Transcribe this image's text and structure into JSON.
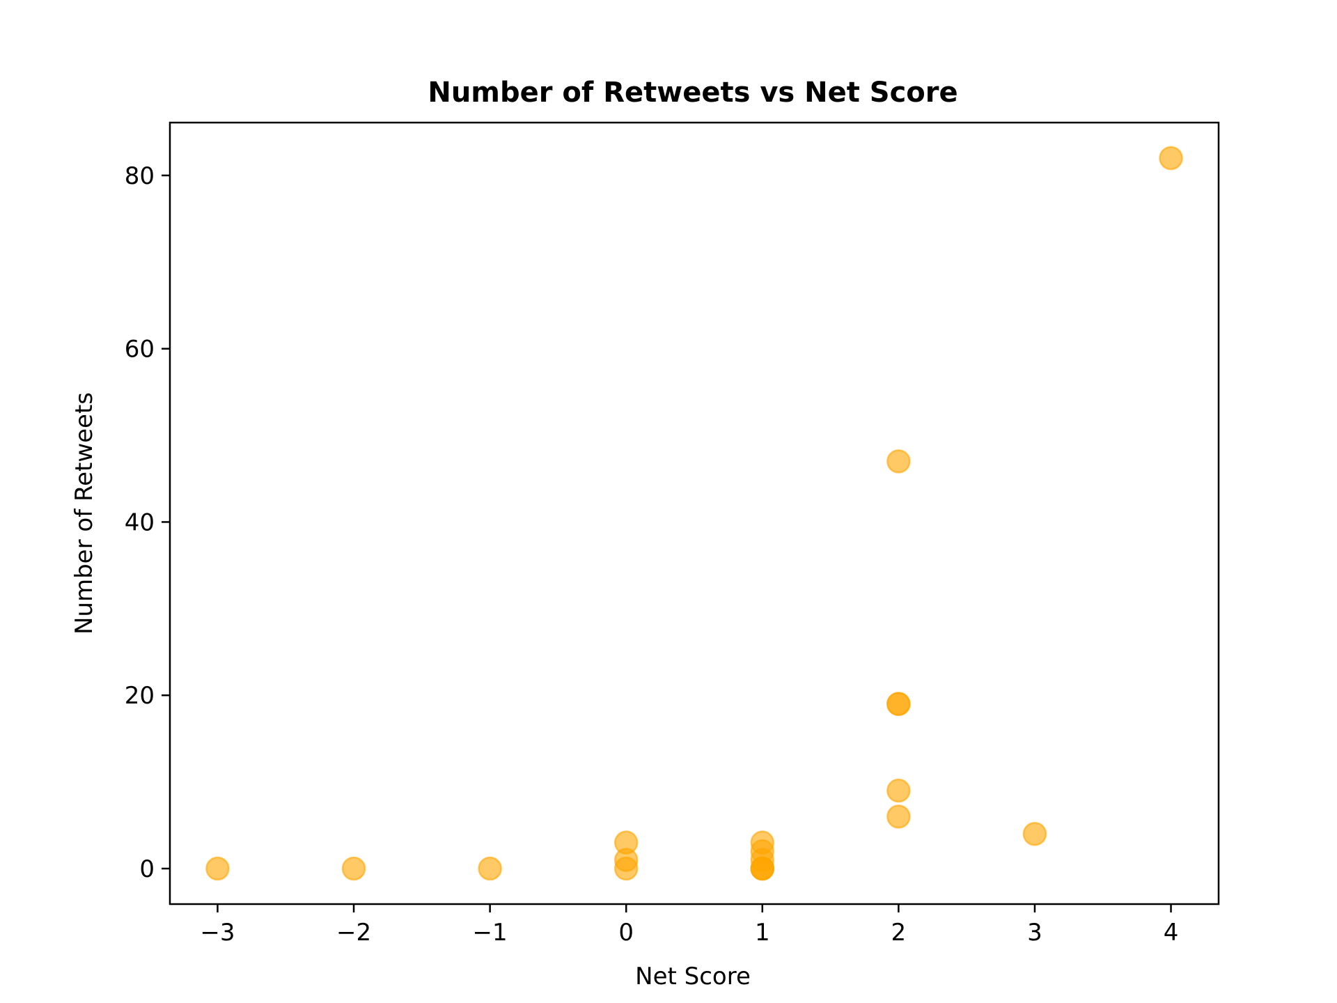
{
  "chart_data": {
    "type": "scatter",
    "title": "Number of Retweets vs Net Score",
    "xlabel": "Net Score",
    "ylabel": "Number of Retweets",
    "xlim": [
      -3.35,
      4.35
    ],
    "ylim": [
      -4.1,
      86.1
    ],
    "x_ticks": [
      -3,
      -2,
      -1,
      0,
      1,
      2,
      3,
      4
    ],
    "x_tick_labels": [
      "−3",
      "−2",
      "−1",
      "0",
      "1",
      "2",
      "3",
      "4"
    ],
    "y_ticks": [
      0,
      20,
      40,
      60,
      80
    ],
    "y_tick_labels": [
      "0",
      "20",
      "40",
      "60",
      "80"
    ],
    "grid": false,
    "marker_color": "#FFA500",
    "marker_alpha": 0.6,
    "points": [
      {
        "x": -3,
        "y": 0
      },
      {
        "x": -2,
        "y": 0
      },
      {
        "x": -1,
        "y": 0
      },
      {
        "x": 0,
        "y": 0
      },
      {
        "x": 0,
        "y": 1
      },
      {
        "x": 0,
        "y": 3
      },
      {
        "x": 1,
        "y": 0
      },
      {
        "x": 1,
        "y": 0
      },
      {
        "x": 1,
        "y": 0
      },
      {
        "x": 1,
        "y": 1
      },
      {
        "x": 1,
        "y": 2
      },
      {
        "x": 1,
        "y": 3
      },
      {
        "x": 2,
        "y": 6
      },
      {
        "x": 2,
        "y": 9
      },
      {
        "x": 2,
        "y": 19
      },
      {
        "x": 2,
        "y": 19
      },
      {
        "x": 2,
        "y": 47
      },
      {
        "x": 3,
        "y": 4
      },
      {
        "x": 4,
        "y": 82
      }
    ]
  }
}
